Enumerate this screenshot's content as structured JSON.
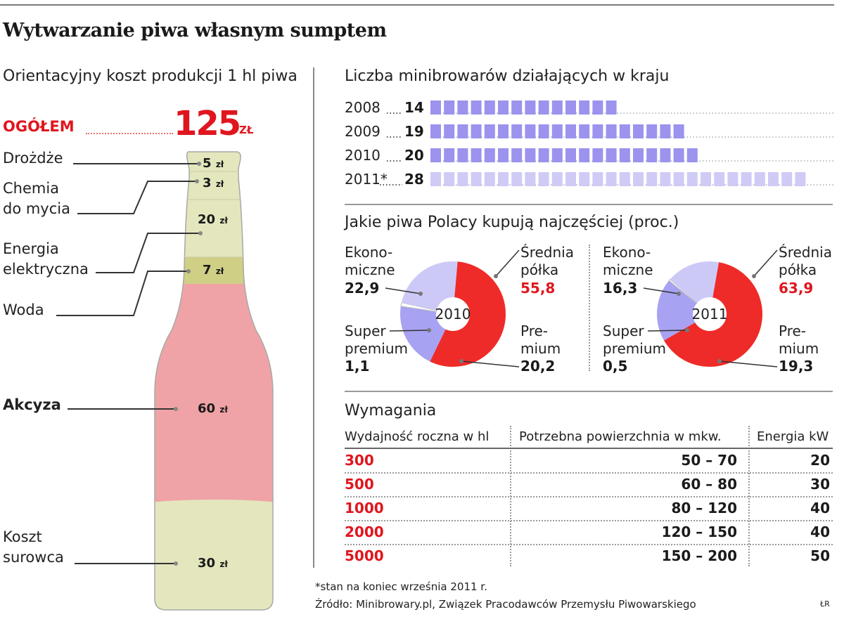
{
  "title": "Wytwarzanie piwa własnym sumptem",
  "cost": {
    "subtitle": "Orientacyjny koszt produkcji 1 hl piwa",
    "total_label": "OGÓŁEM",
    "total_value": "125",
    "total_unit": "ZŁ",
    "unit": "zł",
    "items": [
      {
        "label": "Drożdże",
        "value": "5"
      },
      {
        "label": "Chemia",
        "label2": "do mycia",
        "value": "3"
      },
      {
        "label": "Energia",
        "label2": "elektryczna",
        "value": "20"
      },
      {
        "label": "Woda",
        "value": "7"
      },
      {
        "label": "Akcyza",
        "value": "60"
      },
      {
        "label": "Koszt",
        "label2": "surowca",
        "value": "30"
      }
    ]
  },
  "breweries": {
    "subtitle": "Liczba minibrowarów działających w kraju",
    "rows": [
      {
        "year": "2008",
        "count": "14"
      },
      {
        "year": "2009",
        "count": "19"
      },
      {
        "year": "2010",
        "count": "20"
      },
      {
        "year": "2011*",
        "count": "28"
      }
    ]
  },
  "beer": {
    "subtitle": "Jakie piwa Polacy kupują najczęściej (proc.)",
    "pies": [
      {
        "year": "2010",
        "eko_1": "Ekono-",
        "eko_2": "miczne",
        "eko": "22,9",
        "sred_1": "Średnia",
        "sred_2": "półka",
        "sred": "55,8",
        "sup_1": "Super",
        "sup_2": "premium",
        "sup": "1,1",
        "pre_1": "Pre-",
        "pre_2": "mium",
        "pre": "20,2"
      },
      {
        "year": "2011",
        "eko_1": "Ekono-",
        "eko_2": "miczne",
        "eko": "16,3",
        "sred_1": "Średnia",
        "sred_2": "półka",
        "sred": "63,9",
        "sup_1": "Super",
        "sup_2": "premium",
        "sup": "0,5",
        "pre_1": "Pre-",
        "pre_2": "mium",
        "pre": "19,3"
      }
    ]
  },
  "requirements": {
    "subtitle": "Wymagania",
    "headers": [
      "Wydajność roczna w hl",
      "Potrzebna powierzchnia w mkw.",
      "Energia kW"
    ],
    "rows": [
      [
        "300",
        "50 – 70",
        "20"
      ],
      [
        "500",
        "60 – 80",
        "30"
      ],
      [
        "1000",
        "80 – 120",
        "40"
      ],
      [
        "2000",
        "120 – 150",
        "40"
      ],
      [
        "5000",
        "150 – 200",
        "50"
      ]
    ]
  },
  "footnote": "*stan na koniec września 2011 r.",
  "source": "Źródło: Minibrowary.pl, Związek Pracodawców Przemysłu Piwowarskiego",
  "signature": "ŁR",
  "colors": {
    "accent": "#e0161e",
    "bar": "#9b93ee",
    "bar_light": "#cfcbf6",
    "pie_red": "#ee2b28",
    "pie_purple": "#a8a2f2",
    "pie_lavender": "#cdc9f7",
    "bottle_pink": "#f0a3a6",
    "bottle_cream": "#e4e6bd",
    "bottle_olive": "#cfcf86"
  },
  "chart_data": [
    {
      "type": "bar",
      "title": "Liczba minibrowarów działających w kraju",
      "categories": [
        "2008",
        "2009",
        "2010",
        "2011*"
      ],
      "values": [
        14,
        19,
        20,
        28
      ]
    },
    {
      "type": "pie",
      "title": "2010",
      "categories": [
        "Ekonomiczne",
        "Średnia półka",
        "Premium",
        "Super premium"
      ],
      "values": [
        22.9,
        55.8,
        20.2,
        1.1
      ]
    },
    {
      "type": "pie",
      "title": "2011",
      "categories": [
        "Ekonomiczne",
        "Średnia półka",
        "Premium",
        "Super premium"
      ],
      "values": [
        16.3,
        63.9,
        19.3,
        0.5
      ]
    },
    {
      "type": "bar",
      "title": "Orientacyjny koszt produkcji 1 hl piwa",
      "categories": [
        "Drożdże",
        "Chemia do mycia",
        "Energia elektryczna",
        "Woda",
        "Akcyza",
        "Koszt surowca"
      ],
      "values": [
        5,
        3,
        20,
        7,
        60,
        30
      ]
    }
  ]
}
